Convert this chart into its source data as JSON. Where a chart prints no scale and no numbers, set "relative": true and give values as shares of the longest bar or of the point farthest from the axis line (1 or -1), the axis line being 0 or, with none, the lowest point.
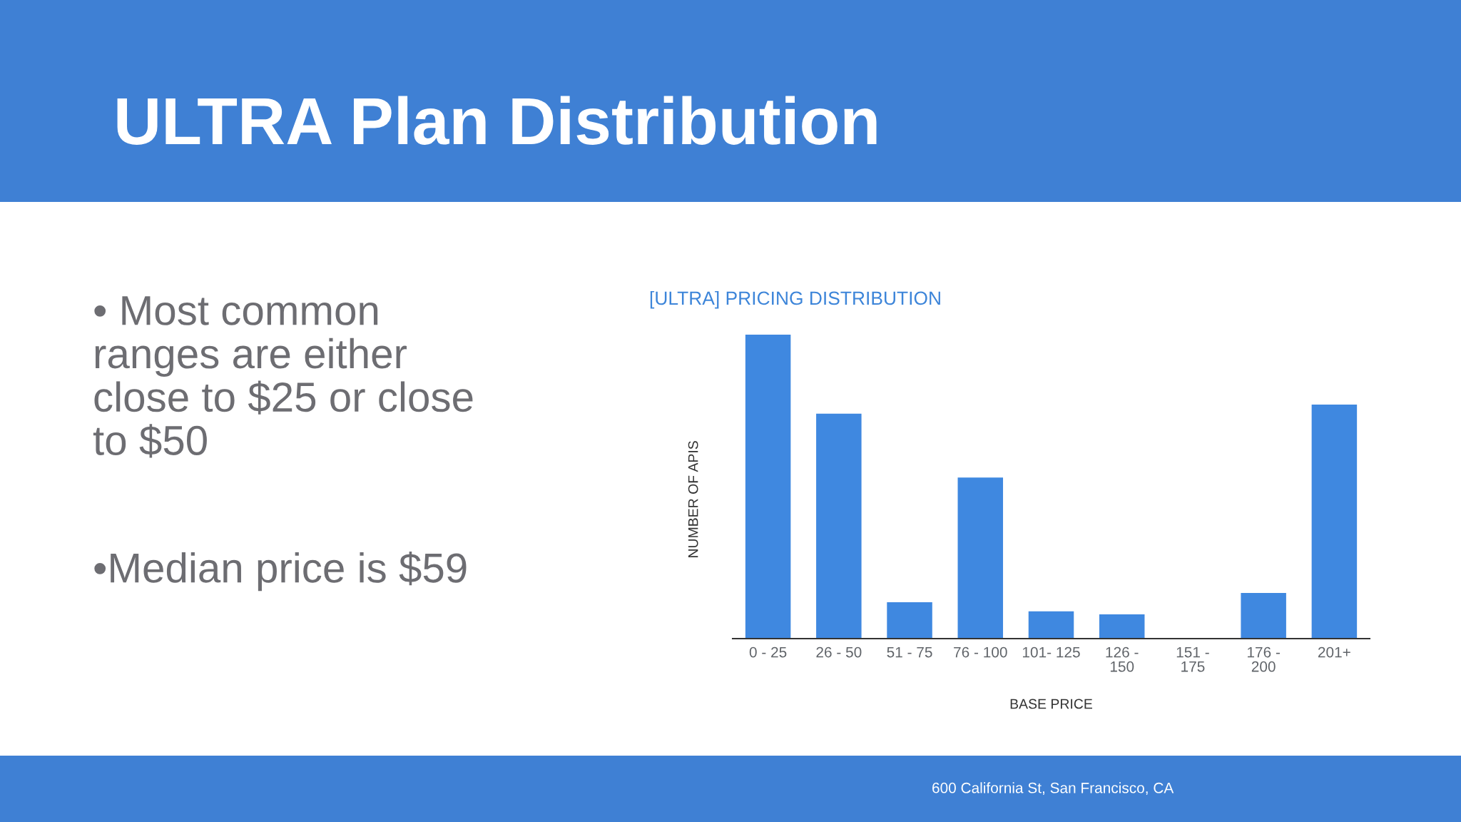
{
  "chart_data": {
    "type": "bar",
    "title": "ULTRA Plan Distribution",
    "subtitle": "[ULTRA] PRICING DISTRIBUTION",
    "xlabel": "BASE PRICE",
    "ylabel": "NUMBER OF APIS",
    "annotations": [
      "• Most common\nranges are either\nclose to $25 or close\nto $50",
      "•Median price is $59",
      "600 California St, San Francisco, CA"
    ],
    "categories": [
      "0 - 25",
      "26 - 50",
      "51 - 75",
      "76 - 100",
      "101- 125",
      "126 -\n150",
      "151 -\n175",
      "176 -\n200",
      "201+"
    ],
    "values": [
      1,
      0.74,
      0.12,
      0.53,
      0.09,
      0.08,
      0,
      0.15,
      0.77
    ],
    "color": "#3f88e0",
    "relative": true
  }
}
